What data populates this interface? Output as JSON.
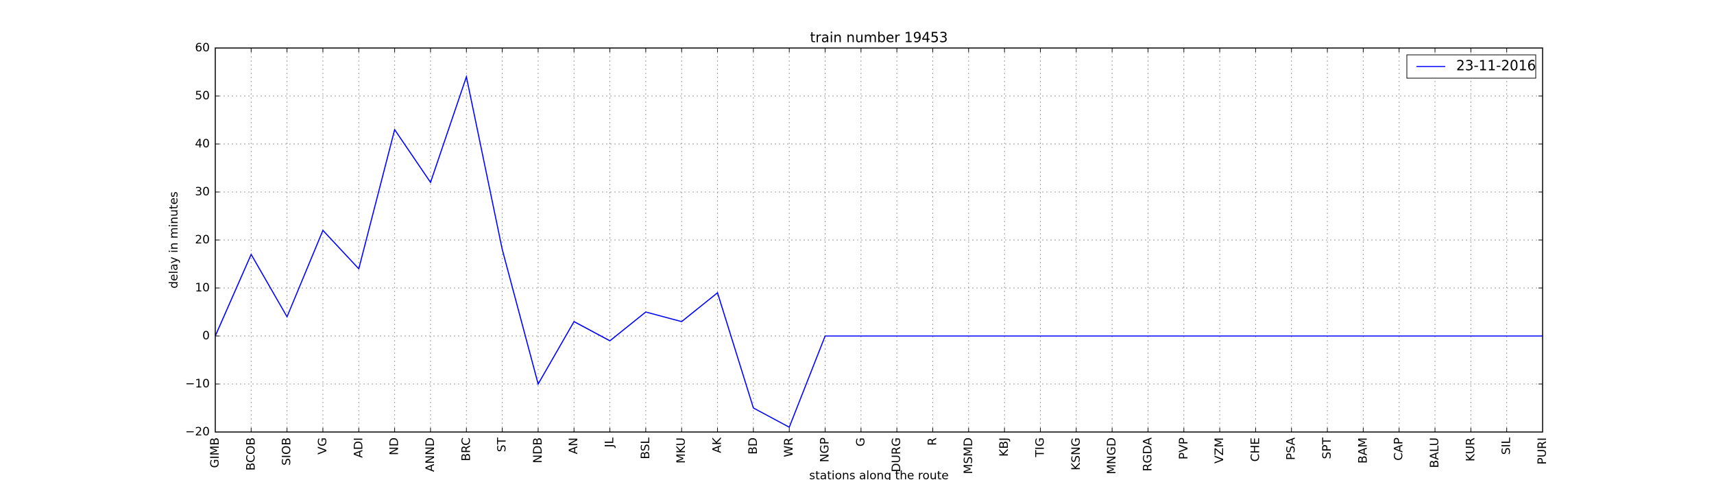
{
  "chart_data": {
    "type": "line",
    "title": "train number 19453",
    "xlabel": "stations along the route",
    "ylabel": "delay in minutes",
    "categories": [
      "GIMB",
      "BCOB",
      "SIOB",
      "VG",
      "ADI",
      "ND",
      "ANND",
      "BRC",
      "ST",
      "NDB",
      "AN",
      "JL",
      "BSL",
      "MKU",
      "AK",
      "BD",
      "WR",
      "NGP",
      "G",
      "DURG",
      "R",
      "MSMD",
      "KBJ",
      "TIG",
      "KSNG",
      "MNGD",
      "RGDA",
      "PVP",
      "VZM",
      "CHE",
      "PSA",
      "SPT",
      "BAM",
      "CAP",
      "BALU",
      "KUR",
      "SIL",
      "PURI"
    ],
    "series": [
      {
        "name": "23-11-2016",
        "color": "#0000ff",
        "values": [
          0,
          17,
          4,
          22,
          14,
          43,
          32,
          54,
          18,
          -10,
          3,
          -1,
          5,
          3,
          9,
          -15,
          -19,
          0,
          0,
          0,
          0,
          0,
          0,
          0,
          0,
          0,
          0,
          0,
          0,
          0,
          0,
          0,
          0,
          0,
          0,
          0,
          0,
          0
        ]
      }
    ],
    "ylim": [
      -20,
      60
    ],
    "yticks": [
      {
        "value": -20,
        "label": "−20"
      },
      {
        "value": -10,
        "label": "−10"
      },
      0,
      10,
      20,
      30,
      40,
      50,
      60
    ],
    "grid": true,
    "legend": "upper right"
  }
}
